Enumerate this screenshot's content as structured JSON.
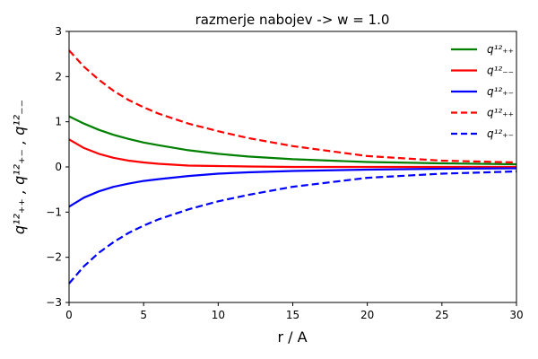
{
  "chart_data": {
    "type": "line",
    "title": "razmerje nabojev -> w = 1.0",
    "xlabel": "r / A",
    "ylabel": "q¹²₊₊ , q¹²₊₋ , q¹²₋₋",
    "xlim": [
      0,
      30
    ],
    "ylim": [
      -3,
      3
    ],
    "xticks": [
      "0",
      "5",
      "10",
      "15",
      "20",
      "25",
      "30"
    ],
    "yticks": [
      "3",
      "2",
      "1",
      "0",
      "−1",
      "−2",
      "−3"
    ],
    "grid": false,
    "legend_position": "top-right",
    "series": [
      {
        "name": "q¹²₊₊",
        "color": "#008000",
        "dash": "solid",
        "x": [
          0,
          1,
          2,
          3,
          4,
          5,
          6,
          8,
          10,
          12,
          15,
          20,
          25,
          30
        ],
        "y": [
          1.12,
          0.96,
          0.82,
          0.71,
          0.62,
          0.54,
          0.48,
          0.37,
          0.29,
          0.23,
          0.17,
          0.11,
          0.08,
          0.06
        ]
      },
      {
        "name": "q¹²₋₋",
        "color": "#ff0000",
        "dash": "solid",
        "x": [
          0,
          1,
          2,
          3,
          4,
          5,
          6,
          8,
          10,
          12,
          15,
          20,
          25,
          30
        ],
        "y": [
          0.61,
          0.42,
          0.29,
          0.2,
          0.14,
          0.1,
          0.07,
          0.03,
          0.02,
          0.01,
          0.0,
          0.0,
          0.0,
          0.0
        ]
      },
      {
        "name": "q¹²₊₋",
        "color": "#0000ff",
        "dash": "solid",
        "x": [
          0,
          1,
          2,
          3,
          4,
          5,
          6,
          8,
          10,
          12,
          15,
          20,
          25,
          30
        ],
        "y": [
          -0.88,
          -0.68,
          -0.54,
          -0.44,
          -0.37,
          -0.31,
          -0.27,
          -0.2,
          -0.15,
          -0.12,
          -0.09,
          -0.06,
          -0.04,
          -0.03
        ]
      },
      {
        "name": "q¹²₊₊",
        "color": "#ff0000",
        "dash": "dashed",
        "x": [
          0,
          1,
          2,
          3,
          4,
          5,
          6,
          8,
          10,
          12,
          15,
          20,
          25,
          30
        ],
        "y": [
          2.58,
          2.22,
          1.93,
          1.68,
          1.48,
          1.32,
          1.18,
          0.96,
          0.79,
          0.64,
          0.46,
          0.24,
          0.14,
          0.1
        ]
      },
      {
        "name": "q¹²₊₋",
        "color": "#0000ff",
        "dash": "dashed",
        "x": [
          0,
          1,
          2,
          3,
          4,
          5,
          6,
          8,
          10,
          12,
          15,
          20,
          25,
          30
        ],
        "y": [
          -2.58,
          -2.2,
          -1.9,
          -1.66,
          -1.46,
          -1.3,
          -1.16,
          -0.94,
          -0.76,
          -0.62,
          -0.44,
          -0.24,
          -0.15,
          -0.1
        ]
      }
    ]
  }
}
